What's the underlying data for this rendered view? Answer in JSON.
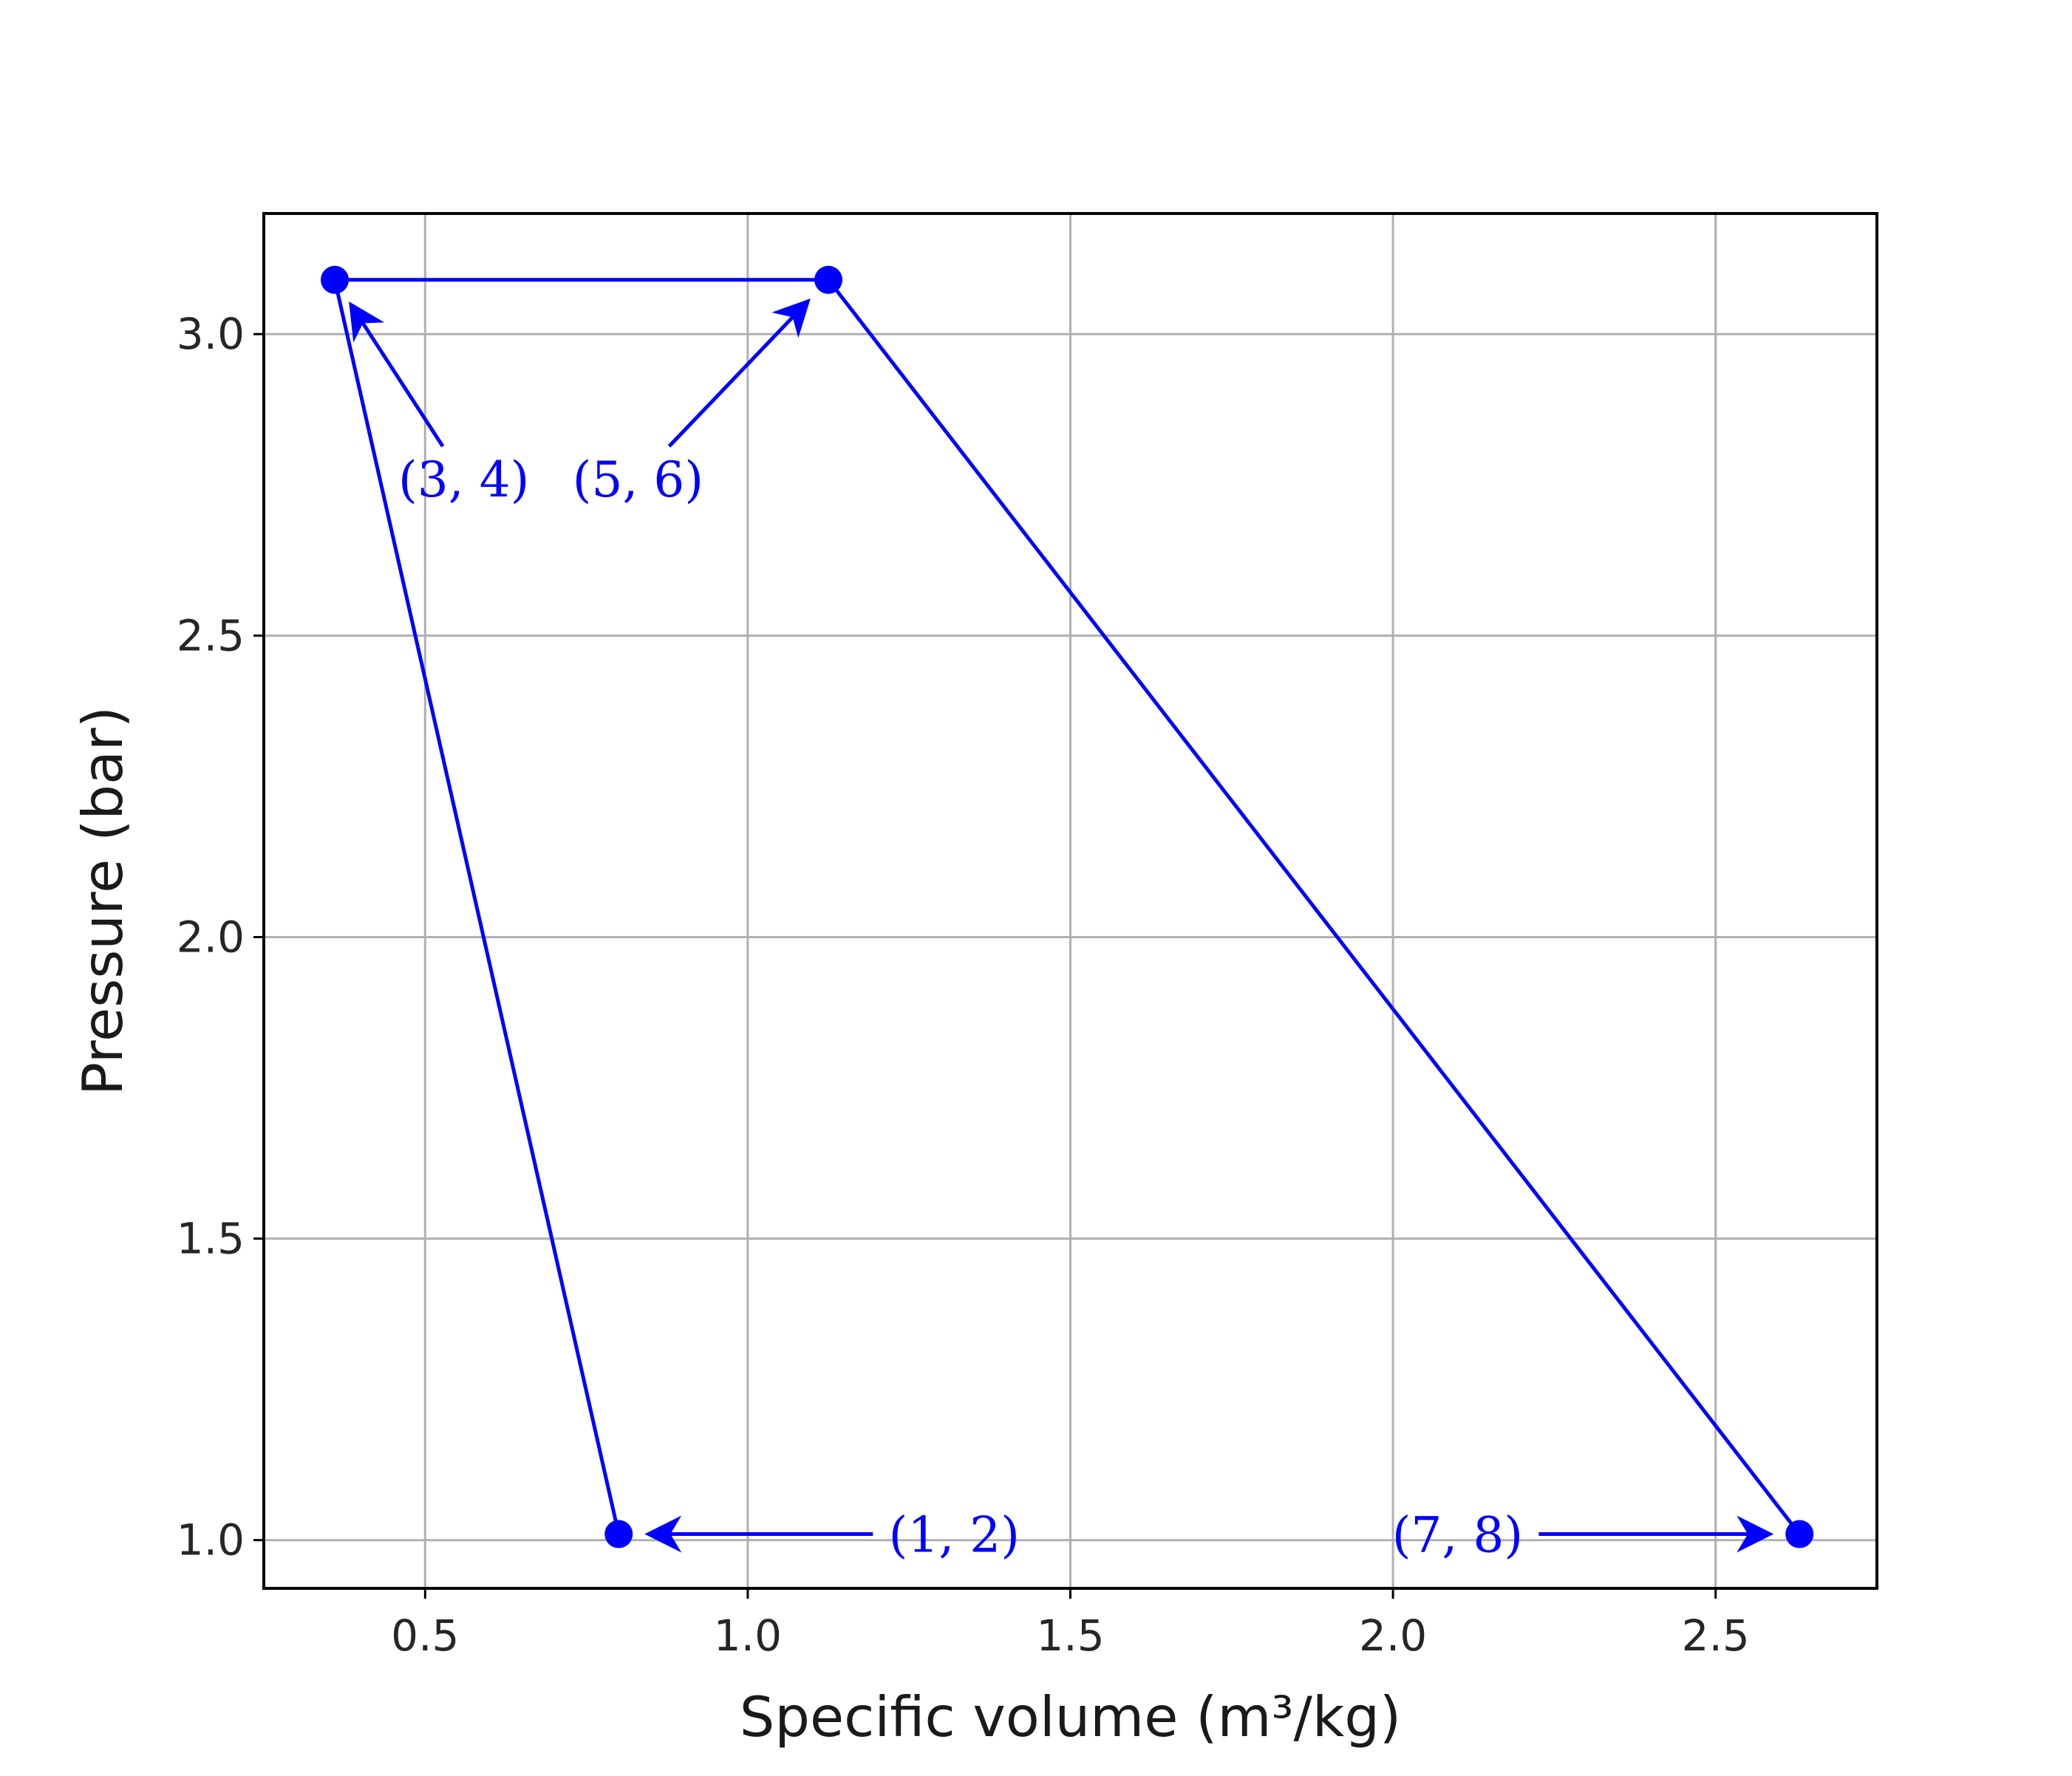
{
  "chart_data": {
    "type": "line",
    "xlabel": "Specific volume (m³/kg)",
    "ylabel": "Pressure (bar)",
    "xlim": [
      0.25,
      2.75
    ],
    "ylim": [
      0.92,
      3.2
    ],
    "grid": true,
    "color": "#0000ff",
    "x_ticks": [
      "0.5",
      "1.0",
      "1.5",
      "2.0",
      "2.5"
    ],
    "y_ticks": [
      "1.0",
      "1.5",
      "2.0",
      "2.5",
      "3.0"
    ],
    "series": [
      {
        "x": [
          0.8,
          0.36,
          1.125,
          2.63
        ],
        "y": [
          1.01,
          3.09,
          3.09,
          1.01
        ]
      }
    ],
    "annotations": [
      {
        "text": "(1, 2)",
        "x": 0.8,
        "y": 1.01,
        "text_x": 1.32,
        "text_y": 1.01
      },
      {
        "text": "(3, 4)",
        "x": 0.36,
        "y": 3.09,
        "text_x": 0.56,
        "text_y": 2.76
      },
      {
        "text": "(5, 6)",
        "x": 1.125,
        "y": 3.09,
        "text_x": 0.83,
        "text_y": 2.76
      },
      {
        "text": "(7, 8)",
        "x": 2.63,
        "y": 1.01,
        "text_x": 2.1,
        "text_y": 1.01
      }
    ]
  }
}
